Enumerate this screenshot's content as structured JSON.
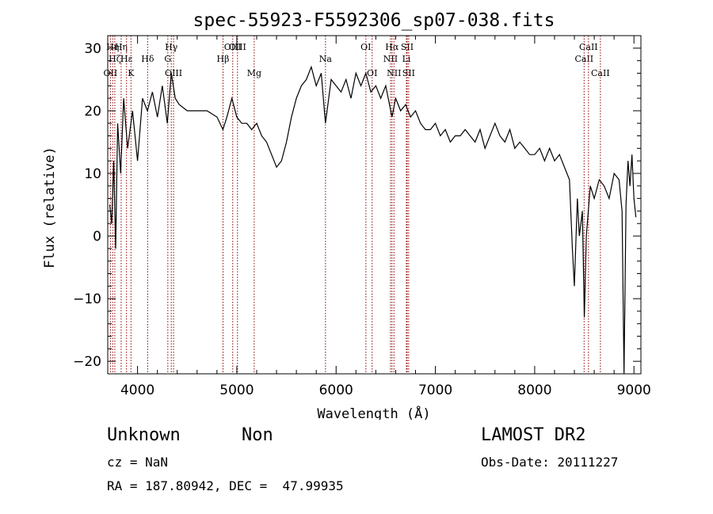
{
  "chart_data": {
    "type": "line",
    "title": "spec-55923-F5592306_sp07-038.fits",
    "xlabel": "Wavelength (Å)",
    "ylabel": "Flux (relative)",
    "xlim": [
      3700,
      9070
    ],
    "ylim": [
      -22,
      32
    ],
    "xticks": [
      4000,
      5000,
      6000,
      7000,
      8000,
      9000
    ],
    "yticks": [
      -20,
      -10,
      0,
      10,
      20,
      30
    ],
    "grid": false,
    "legend": "none",
    "series": [
      {
        "color": "#000000",
        "x": [
          3720,
          3740,
          3760,
          3780,
          3800,
          3830,
          3860,
          3900,
          3950,
          4000,
          4050,
          4100,
          4150,
          4200,
          4250,
          4300,
          4340,
          4380,
          4420,
          4500,
          4600,
          4700,
          4800,
          4860,
          4900,
          4950,
          5000,
          5050,
          5100,
          5150,
          5200,
          5250,
          5300,
          5350,
          5400,
          5450,
          5500,
          5550,
          5600,
          5650,
          5700,
          5750,
          5800,
          5850,
          5893,
          5950,
          6000,
          6050,
          6100,
          6150,
          6200,
          6250,
          6300,
          6350,
          6400,
          6450,
          6500,
          6563,
          6600,
          6650,
          6700,
          6750,
          6800,
          6850,
          6900,
          6950,
          7000,
          7050,
          7100,
          7150,
          7200,
          7250,
          7300,
          7350,
          7400,
          7450,
          7500,
          7550,
          7600,
          7650,
          7700,
          7750,
          7800,
          7850,
          7900,
          7950,
          8000,
          8050,
          8100,
          8150,
          8200,
          8250,
          8300,
          8350,
          8380,
          8400,
          8430,
          8450,
          8480,
          8500,
          8520,
          8540,
          8560,
          8600,
          8650,
          8700,
          8750,
          8800,
          8850,
          8880,
          8900,
          8920,
          8940,
          8960,
          8980,
          9000,
          9020
        ],
        "y": [
          5,
          2,
          12,
          -2,
          18,
          10,
          22,
          14,
          20,
          12,
          22,
          20,
          23,
          19,
          24,
          18,
          26,
          22,
          21,
          20,
          20,
          20,
          19,
          17,
          19,
          22,
          19,
          18,
          18,
          17,
          18,
          16,
          15,
          13,
          11,
          12,
          15,
          19,
          22,
          24,
          25,
          27,
          24,
          26,
          18,
          25,
          24,
          23,
          25,
          22,
          26,
          24,
          26,
          23,
          24,
          22,
          24,
          19,
          22,
          20,
          21,
          19,
          20,
          18,
          17,
          17,
          18,
          16,
          17,
          15,
          16,
          16,
          17,
          16,
          15,
          17,
          14,
          16,
          18,
          16,
          15,
          17,
          14,
          15,
          14,
          13,
          13,
          14,
          12,
          14,
          12,
          13,
          11,
          9,
          -2,
          -8,
          6,
          0,
          4,
          -13,
          0,
          4,
          8,
          6,
          9,
          8,
          6,
          10,
          9,
          4,
          -22,
          5,
          12,
          8,
          13,
          6,
          3
        ]
      }
    ],
    "lines": [
      {
        "x": 3727,
        "label": "OII",
        "row": 3
      },
      {
        "x": 3750,
        "label": "Hη",
        "row": 1
      },
      {
        "x": 3771,
        "label": "Hζ",
        "row": 2
      },
      {
        "x": 3835,
        "label": "Hη",
        "row": 1
      },
      {
        "x": 3889,
        "label": "Hε",
        "row": 2
      },
      {
        "x": 3934,
        "label": "K",
        "row": 3
      },
      {
        "x": 4102,
        "label": "Hδ",
        "row": 2
      },
      {
        "x": 4305,
        "label": "G",
        "row": 2
      },
      {
        "x": 4340,
        "label": "Hγ",
        "row": 1
      },
      {
        "x": 4363,
        "label": "OIII",
        "row": 3
      },
      {
        "x": 4861,
        "label": "Hβ",
        "row": 2
      },
      {
        "x": 4959,
        "label": "OIII",
        "row": 1
      },
      {
        "x": 5007,
        "label": "OIII",
        "row": 1
      },
      {
        "x": 5175,
        "label": "Mg",
        "row": 3
      },
      {
        "x": 5893,
        "label": "Na",
        "row": 2
      },
      {
        "x": 6300,
        "label": "OI",
        "row": 1
      },
      {
        "x": 6363,
        "label": "OI",
        "row": 3
      },
      {
        "x": 6548,
        "label": "NII",
        "row": 2
      },
      {
        "x": 6563,
        "label": "Hα",
        "row": 1
      },
      {
        "x": 6583,
        "label": "NII",
        "row": 3
      },
      {
        "x": 6716,
        "label": "SII",
        "row": 1
      },
      {
        "x": 6731,
        "label": "SII",
        "row": 3
      },
      {
        "x": 6708,
        "label": "Li",
        "row": 2
      },
      {
        "x": 8498,
        "label": "CaII",
        "row": 2
      },
      {
        "x": 8542,
        "label": "CaII",
        "row": 1
      },
      {
        "x": 8662,
        "label": "CaII",
        "row": 3
      }
    ]
  },
  "footer": {
    "obj_class": "Unknown",
    "obj_subclass": "Non",
    "survey": "LAMOST DR2",
    "cz": "cz = NaN",
    "obs_date": "Obs-Date: 20111227",
    "radec": "RA = 187.80942, DEC =  47.99935"
  }
}
